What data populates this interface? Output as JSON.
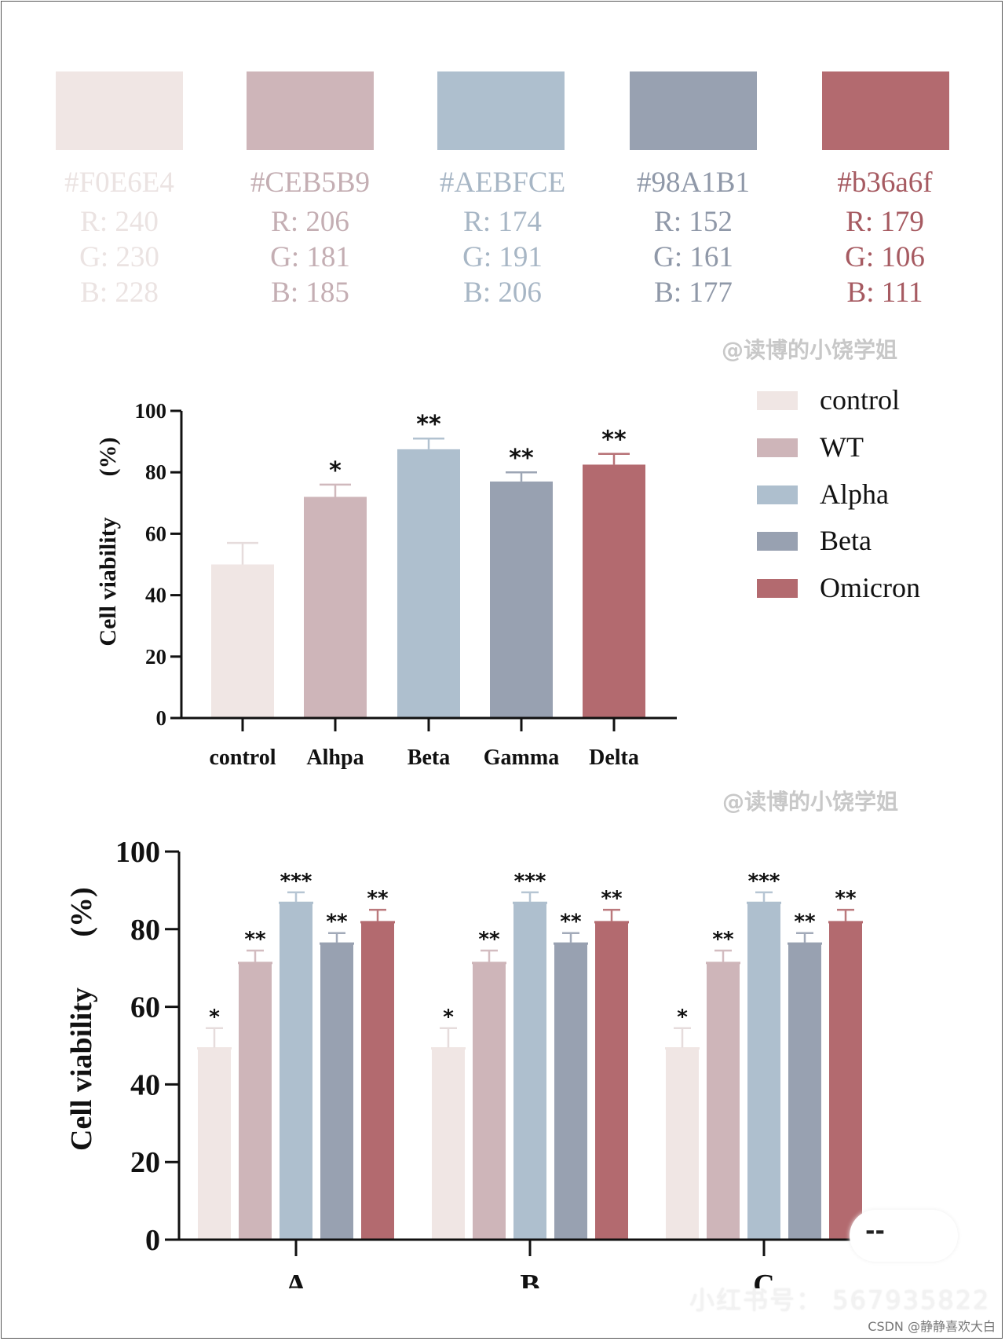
{
  "palette": [
    {
      "hex": "#F0E6E4",
      "r": "R: 240",
      "g": "G: 230",
      "b": "B: 228",
      "color": "#F0E6E4",
      "text_color": "#ebe3e2"
    },
    {
      "hex": "#CEB5B9",
      "r": "R: 206",
      "g": "G: 181",
      "b": "B: 185",
      "color": "#CEB5B9",
      "text_color": "#c4aeb3"
    },
    {
      "hex": "#AEBFCE",
      "r": "R: 174",
      "g": "G: 191",
      "b": "B: 206",
      "color": "#AEBFCE",
      "text_color": "#a7b6c5"
    },
    {
      "hex": "#98A1B1",
      "r": "R: 152",
      "g": "G: 161",
      "b": "B: 177",
      "color": "#98A1B1",
      "text_color": "#8f98a8"
    },
    {
      "hex": "#b36a6f",
      "r": "R: 179",
      "g": "G: 106",
      "b": "B: 111",
      "color": "#b36a6f",
      "text_color": "#a65a61"
    }
  ],
  "watermarks": {
    "author": "@读博的小饶学姐",
    "xiaohongshu": "小红书号： 567935822",
    "csdn": "CSDN @静静喜欢大白",
    "badge_text": "--"
  },
  "legend": [
    {
      "label": "control",
      "color": "#F0E6E4"
    },
    {
      "label": "WT",
      "color": "#CEB5B9"
    },
    {
      "label": "Alpha",
      "color": "#AEBFCE"
    },
    {
      "label": "Beta",
      "color": "#98A1B1"
    },
    {
      "label": "Omicron",
      "color": "#b36a6f"
    }
  ],
  "chart_data": [
    {
      "type": "bar",
      "title": "",
      "xlabel": "",
      "ylabel": "Cell viability (%)",
      "ylabel_main": "Cell viability",
      "ylabel_unit": "(%)",
      "ylim": [
        0,
        100
      ],
      "yticks": [
        "0",
        "20",
        "40",
        "60",
        "80",
        "100"
      ],
      "categories": [
        "control",
        "Alhpa",
        "Beta",
        "Gamma",
        "Delta"
      ],
      "values": [
        50,
        72,
        87.5,
        77,
        82.5
      ],
      "error_upper": [
        57,
        76,
        91,
        80,
        86
      ],
      "significance": [
        "",
        "*",
        "**",
        "**",
        "**"
      ],
      "colors": [
        "#F0E6E4",
        "#CEB5B9",
        "#AEBFCE",
        "#98A1B1",
        "#b36a6f"
      ],
      "grid": false
    },
    {
      "type": "bar",
      "title": "",
      "xlabel": "",
      "ylabel": "Cell viability (%)",
      "ylabel_main": "Cell viability",
      "ylabel_unit": "(%)",
      "ylim": [
        0,
        100
      ],
      "yticks": [
        "0",
        "20",
        "40",
        "60",
        "80",
        "100"
      ],
      "categories": [
        "A",
        "B",
        "C"
      ],
      "series": [
        {
          "name": "control",
          "color": "#F0E6E4",
          "values": [
            49.5,
            49.5,
            49.5
          ],
          "error_upper": [
            54.5,
            54.5,
            54.5
          ],
          "significance": [
            "*",
            "*",
            "*"
          ]
        },
        {
          "name": "WT",
          "color": "#CEB5B9",
          "values": [
            71.5,
            71.5,
            71.5
          ],
          "error_upper": [
            74.5,
            74.5,
            74.5
          ],
          "significance": [
            "**",
            "**",
            "**"
          ]
        },
        {
          "name": "Alpha",
          "color": "#AEBFCE",
          "values": [
            87,
            87,
            87
          ],
          "error_upper": [
            89.5,
            89.5,
            89.5
          ],
          "significance": [
            "***",
            "***",
            "***"
          ]
        },
        {
          "name": "Beta",
          "color": "#98A1B1",
          "values": [
            76.5,
            76.5,
            76.5
          ],
          "error_upper": [
            79,
            79,
            79
          ],
          "significance": [
            "**",
            "**",
            "**"
          ]
        },
        {
          "name": "Omicron",
          "color": "#b36a6f",
          "values": [
            82,
            82,
            82
          ],
          "error_upper": [
            85,
            85,
            85
          ],
          "significance": [
            "**",
            "**",
            "**"
          ]
        }
      ],
      "legend_position": "top-right",
      "grid": false
    }
  ]
}
